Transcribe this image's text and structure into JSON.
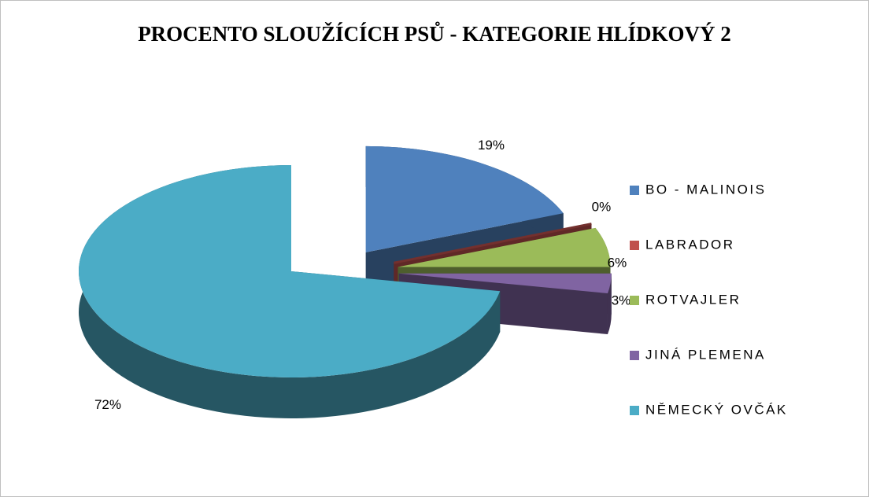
{
  "chart_data": {
    "type": "pie",
    "title": "PROCENTO SLOUŽÍCÍCH PSŮ - KATEGORIE HLÍDKOVÝ 2",
    "categories": [
      "BO - MALINOIS",
      "LABRADOR",
      "ROTVAJLER",
      "JINÁ PLEMENA",
      "NĚMECKÝ OVČÁK"
    ],
    "values": [
      19,
      0,
      6,
      3,
      72
    ],
    "value_labels": [
      "19%",
      "0%",
      "6%",
      "3%",
      "72%"
    ],
    "colors": [
      "#4f81bd",
      "#c0504d",
      "#9bbb59",
      "#8064a2",
      "#4bacc6"
    ],
    "legend": "right"
  }
}
